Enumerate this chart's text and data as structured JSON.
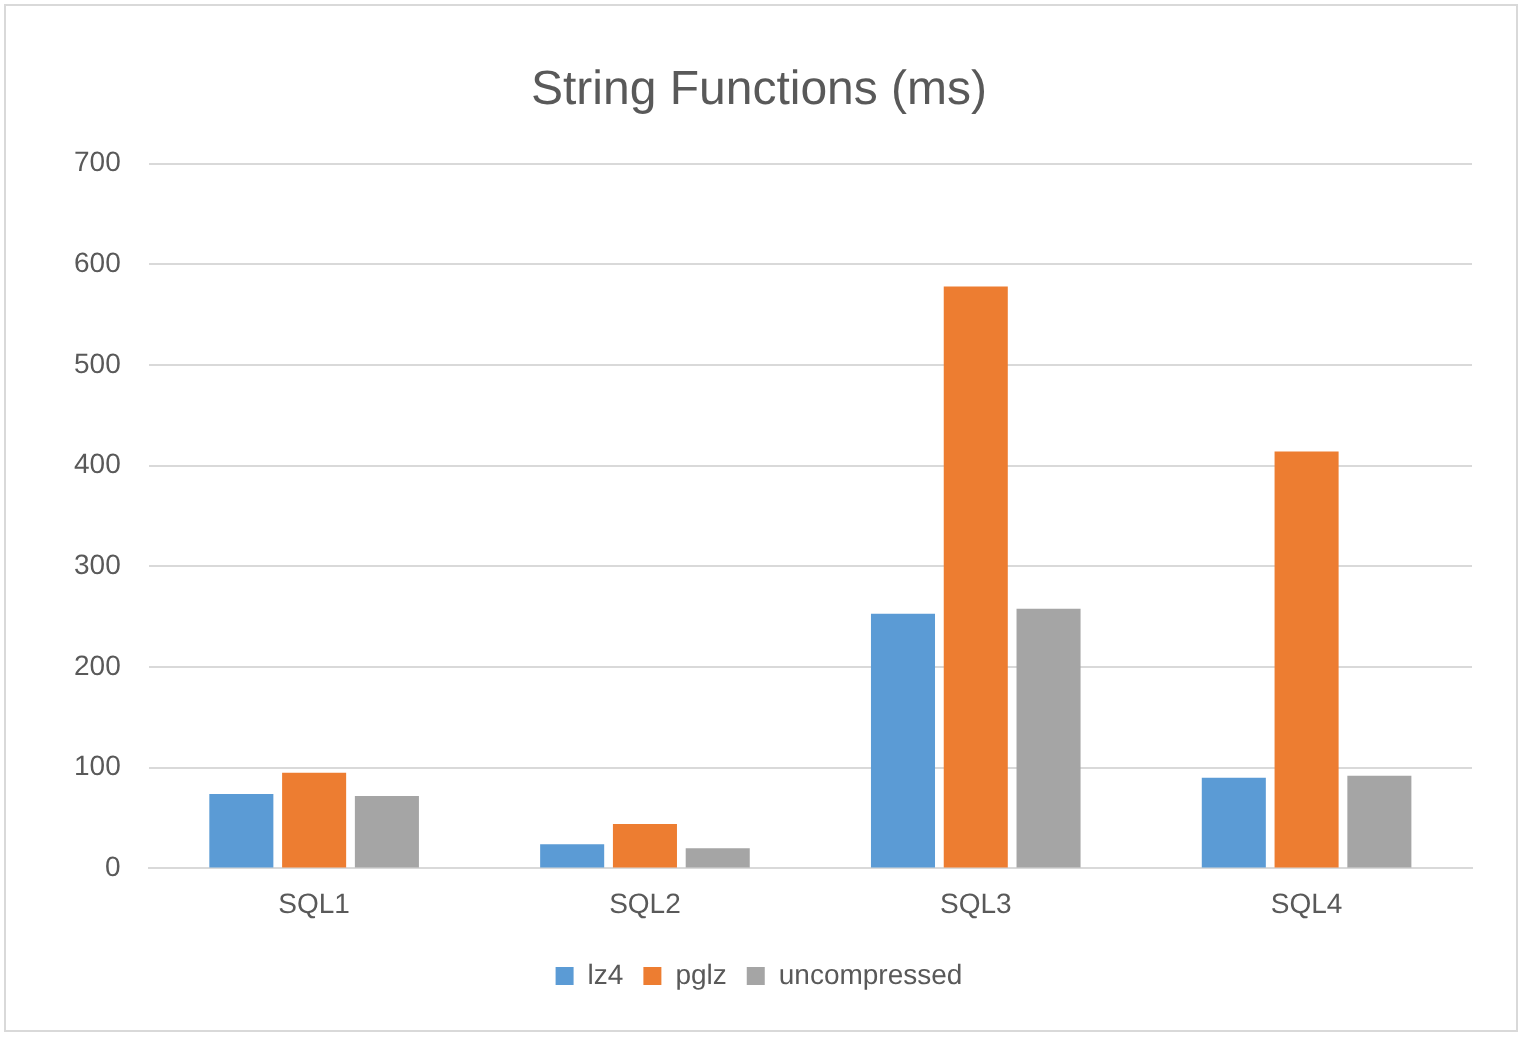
{
  "chart_data": {
    "type": "bar",
    "title": "String Functions (ms)",
    "categories": [
      "SQL1",
      "SQL2",
      "SQL3",
      "SQL4"
    ],
    "series": [
      {
        "name": "lz4",
        "color": "#5b9bd5",
        "values": [
          74,
          24,
          253,
          90
        ]
      },
      {
        "name": "pglz",
        "color": "#ed7d31",
        "values": [
          95,
          44,
          578,
          414
        ]
      },
      {
        "name": "uncompressed",
        "color": "#a5a5a5",
        "values": [
          72,
          20,
          258,
          92
        ]
      }
    ],
    "ylim": [
      0,
      700
    ],
    "yticks": [
      0,
      100,
      200,
      300,
      400,
      500,
      600,
      700
    ],
    "grid": "y",
    "legend": "bottom"
  }
}
